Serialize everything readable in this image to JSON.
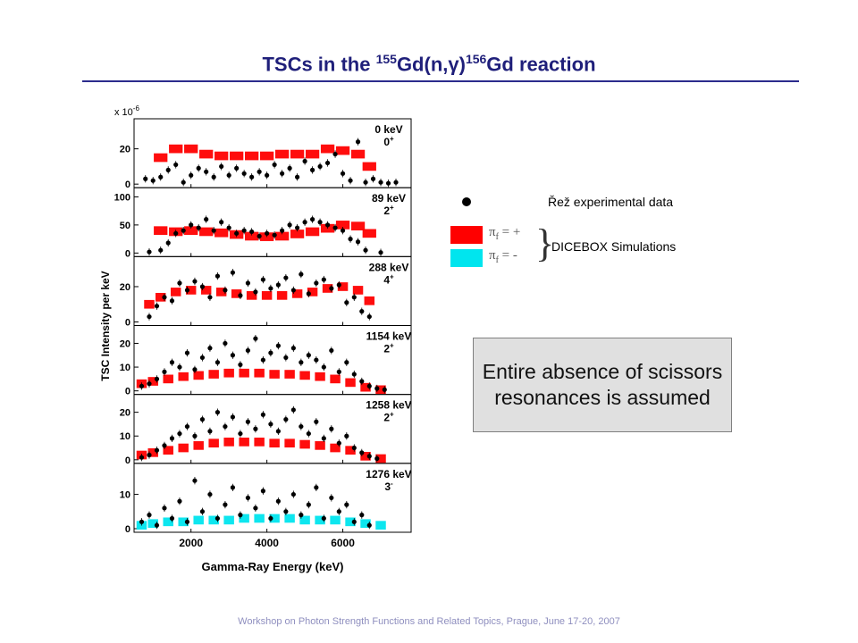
{
  "slide": {
    "title_pre": "TSCs in the ",
    "title_sup1": "155",
    "title_mid": "Gd(n,γ)",
    "title_sup2": "156",
    "title_post": "Gd reaction",
    "footer": "Workshop on Photon Strength Functions and Related Topics, Prague, June 17-20, 2007"
  },
  "legend": {
    "experimental": "Řež experimental data",
    "simulations": "DICEBOX Simulations",
    "pi_plus_symbol": "π",
    "pi_plus_sub": "f",
    "pi_plus_rest": " = +",
    "pi_minus_symbol": "π",
    "pi_minus_sub": "f",
    "pi_minus_rest": " = -",
    "colors": {
      "pi_plus": "#ff0000",
      "pi_minus": "#00e5ee",
      "experimental": "#000000"
    }
  },
  "note": {
    "text": "Entire absence of scissors resonances is assumed"
  },
  "chart_data": {
    "type": "scatter",
    "xlabel": "Gamma-Ray Energy (keV)",
    "ylabel": "TSC Intensity per keV",
    "scale_label": "x 10",
    "scale_exponent": "-6",
    "xlim": [
      500,
      7800
    ],
    "xticks": [
      2000,
      4000,
      6000
    ],
    "panels": [
      {
        "level": "0 keV",
        "spin": "0",
        "parity": "+",
        "ylim": [
          0,
          35
        ],
        "yticks": [
          0,
          20
        ],
        "simulation_color": "#ff0000",
        "simulation": [
          [
            1200,
            15
          ],
          [
            1600,
            20
          ],
          [
            2000,
            20
          ],
          [
            2400,
            17
          ],
          [
            2800,
            16
          ],
          [
            3200,
            16
          ],
          [
            3600,
            16
          ],
          [
            4000,
            16
          ],
          [
            4400,
            17
          ],
          [
            4800,
            17
          ],
          [
            5200,
            17
          ],
          [
            5600,
            20
          ],
          [
            6000,
            19
          ],
          [
            6400,
            17
          ],
          [
            6700,
            10
          ]
        ],
        "experimental": [
          [
            800,
            3
          ],
          [
            1000,
            2
          ],
          [
            1200,
            4
          ],
          [
            1400,
            8
          ],
          [
            1600,
            11
          ],
          [
            1800,
            1
          ],
          [
            2000,
            5
          ],
          [
            2200,
            9
          ],
          [
            2400,
            7
          ],
          [
            2600,
            4
          ],
          [
            2800,
            10
          ],
          [
            3000,
            5
          ],
          [
            3200,
            9
          ],
          [
            3400,
            6
          ],
          [
            3600,
            4
          ],
          [
            3800,
            7
          ],
          [
            4000,
            5
          ],
          [
            4200,
            11
          ],
          [
            4400,
            6
          ],
          [
            4600,
            9
          ],
          [
            4800,
            4
          ],
          [
            5000,
            13
          ],
          [
            5200,
            8
          ],
          [
            5400,
            10
          ],
          [
            5600,
            12
          ],
          [
            5800,
            17
          ],
          [
            6000,
            6
          ],
          [
            6200,
            2
          ],
          [
            6400,
            24
          ],
          [
            6600,
            1
          ],
          [
            6800,
            3
          ],
          [
            7000,
            1
          ],
          [
            7200,
            0.5
          ],
          [
            7400,
            1
          ]
        ]
      },
      {
        "level": "89 keV",
        "spin": "2",
        "parity": "+",
        "ylim": [
          0,
          110
        ],
        "yticks": [
          0,
          50,
          100
        ],
        "simulation_color": "#ff0000",
        "simulation": [
          [
            1200,
            40
          ],
          [
            1600,
            38
          ],
          [
            2000,
            40
          ],
          [
            2400,
            38
          ],
          [
            2800,
            36
          ],
          [
            3200,
            33
          ],
          [
            3600,
            30
          ],
          [
            4000,
            29
          ],
          [
            4400,
            30
          ],
          [
            4800,
            34
          ],
          [
            5200,
            38
          ],
          [
            5600,
            44
          ],
          [
            6000,
            50
          ],
          [
            6400,
            48
          ],
          [
            6700,
            35
          ]
        ],
        "experimental": [
          [
            900,
            2
          ],
          [
            1200,
            5
          ],
          [
            1400,
            18
          ],
          [
            1600,
            35
          ],
          [
            1800,
            40
          ],
          [
            2000,
            50
          ],
          [
            2200,
            45
          ],
          [
            2400,
            60
          ],
          [
            2600,
            40
          ],
          [
            2800,
            55
          ],
          [
            3000,
            45
          ],
          [
            3200,
            35
          ],
          [
            3400,
            40
          ],
          [
            3600,
            38
          ],
          [
            3800,
            30
          ],
          [
            4000,
            35
          ],
          [
            4200,
            32
          ],
          [
            4400,
            40
          ],
          [
            4600,
            50
          ],
          [
            4800,
            45
          ],
          [
            5000,
            55
          ],
          [
            5200,
            60
          ],
          [
            5400,
            55
          ],
          [
            5600,
            50
          ],
          [
            5800,
            45
          ],
          [
            6000,
            40
          ],
          [
            6200,
            25
          ],
          [
            6400,
            20
          ],
          [
            6600,
            5
          ],
          [
            7000,
            1
          ]
        ]
      },
      {
        "level": "288 keV",
        "spin": "4",
        "parity": "+",
        "ylim": [
          0,
          35
        ],
        "yticks": [
          0,
          20
        ],
        "simulation_color": "#ff0000",
        "simulation": [
          [
            900,
            10
          ],
          [
            1200,
            14
          ],
          [
            1600,
            17
          ],
          [
            2000,
            18
          ],
          [
            2400,
            18
          ],
          [
            2800,
            17
          ],
          [
            3200,
            16
          ],
          [
            3600,
            15
          ],
          [
            4000,
            15
          ],
          [
            4400,
            15
          ],
          [
            4800,
            16
          ],
          [
            5200,
            17
          ],
          [
            5600,
            19
          ],
          [
            6000,
            20
          ],
          [
            6400,
            18
          ],
          [
            6700,
            12
          ]
        ],
        "experimental": [
          [
            900,
            3
          ],
          [
            1100,
            9
          ],
          [
            1300,
            14
          ],
          [
            1500,
            12
          ],
          [
            1700,
            22
          ],
          [
            1900,
            18
          ],
          [
            2100,
            23
          ],
          [
            2300,
            20
          ],
          [
            2500,
            14
          ],
          [
            2700,
            26
          ],
          [
            2900,
            18
          ],
          [
            3100,
            28
          ],
          [
            3300,
            15
          ],
          [
            3500,
            22
          ],
          [
            3700,
            17
          ],
          [
            3900,
            24
          ],
          [
            4100,
            19
          ],
          [
            4300,
            21
          ],
          [
            4500,
            25
          ],
          [
            4700,
            18
          ],
          [
            4900,
            27
          ],
          [
            5100,
            16
          ],
          [
            5300,
            22
          ],
          [
            5500,
            24
          ],
          [
            5700,
            19
          ],
          [
            5900,
            21
          ],
          [
            6100,
            11
          ],
          [
            6300,
            14
          ],
          [
            6500,
            6
          ],
          [
            6700,
            3
          ]
        ]
      },
      {
        "level": "1154 keV",
        "spin": "2",
        "parity": "+",
        "ylim": [
          0,
          26
        ],
        "yticks": [
          0,
          10,
          20
        ],
        "simulation_color": "#ff0000",
        "simulation": [
          [
            700,
            3
          ],
          [
            1000,
            4
          ],
          [
            1400,
            5
          ],
          [
            1800,
            6
          ],
          [
            2200,
            6.5
          ],
          [
            2600,
            7
          ],
          [
            3000,
            7.5
          ],
          [
            3400,
            7.5
          ],
          [
            3800,
            7.5
          ],
          [
            4200,
            7
          ],
          [
            4600,
            7
          ],
          [
            5000,
            6.5
          ],
          [
            5400,
            6
          ],
          [
            5800,
            5
          ],
          [
            6200,
            3.5
          ],
          [
            6600,
            1.5
          ],
          [
            7000,
            0.5
          ]
        ],
        "experimental": [
          [
            700,
            2
          ],
          [
            900,
            3
          ],
          [
            1100,
            5
          ],
          [
            1300,
            8
          ],
          [
            1500,
            12
          ],
          [
            1700,
            10
          ],
          [
            1900,
            16
          ],
          [
            2100,
            9
          ],
          [
            2300,
            14
          ],
          [
            2500,
            18
          ],
          [
            2700,
            12
          ],
          [
            2900,
            20
          ],
          [
            3100,
            15
          ],
          [
            3300,
            11
          ],
          [
            3500,
            17
          ],
          [
            3700,
            22
          ],
          [
            3900,
            13
          ],
          [
            4100,
            16
          ],
          [
            4300,
            19
          ],
          [
            4500,
            14
          ],
          [
            4700,
            18
          ],
          [
            4900,
            12
          ],
          [
            5100,
            15
          ],
          [
            5300,
            13
          ],
          [
            5500,
            10
          ],
          [
            5700,
            17
          ],
          [
            5900,
            8
          ],
          [
            6100,
            12
          ],
          [
            6300,
            7
          ],
          [
            6500,
            4
          ],
          [
            6700,
            2
          ],
          [
            6900,
            1
          ],
          [
            7100,
            0.5
          ]
        ]
      },
      {
        "level": "1258 keV",
        "spin": "2",
        "parity": "+",
        "ylim": [
          0,
          26
        ],
        "yticks": [
          0,
          10,
          20
        ],
        "simulation_color": "#ff0000",
        "simulation": [
          [
            700,
            2
          ],
          [
            1000,
            3
          ],
          [
            1400,
            4
          ],
          [
            1800,
            5
          ],
          [
            2200,
            6
          ],
          [
            2600,
            7
          ],
          [
            3000,
            7.5
          ],
          [
            3400,
            7.5
          ],
          [
            3800,
            7.5
          ],
          [
            4200,
            7
          ],
          [
            4600,
            7
          ],
          [
            5000,
            6.5
          ],
          [
            5400,
            6
          ],
          [
            5800,
            5
          ],
          [
            6200,
            4
          ],
          [
            6600,
            1.5
          ],
          [
            7000,
            0.5
          ]
        ],
        "experimental": [
          [
            700,
            1
          ],
          [
            900,
            2
          ],
          [
            1100,
            4
          ],
          [
            1300,
            6
          ],
          [
            1500,
            9
          ],
          [
            1700,
            11
          ],
          [
            1900,
            14
          ],
          [
            2100,
            10
          ],
          [
            2300,
            17
          ],
          [
            2500,
            12
          ],
          [
            2700,
            20
          ],
          [
            2900,
            14
          ],
          [
            3100,
            18
          ],
          [
            3300,
            11
          ],
          [
            3500,
            16
          ],
          [
            3700,
            13
          ],
          [
            3900,
            19
          ],
          [
            4100,
            15
          ],
          [
            4300,
            12
          ],
          [
            4500,
            17
          ],
          [
            4700,
            21
          ],
          [
            4900,
            14
          ],
          [
            5100,
            11
          ],
          [
            5300,
            16
          ],
          [
            5500,
            9
          ],
          [
            5700,
            13
          ],
          [
            5900,
            7
          ],
          [
            6100,
            10
          ],
          [
            6300,
            5
          ],
          [
            6500,
            3
          ],
          [
            6700,
            1.5
          ],
          [
            6900,
            0.5
          ]
        ]
      },
      {
        "level": "1276 keV",
        "spin": "3",
        "parity": "-",
        "ylim": [
          0,
          18
        ],
        "yticks": [
          0,
          10
        ],
        "simulation_color": "#00e5ee",
        "simulation": [
          [
            700,
            1
          ],
          [
            1000,
            1.5
          ],
          [
            1400,
            2
          ],
          [
            1800,
            2
          ],
          [
            2200,
            2.5
          ],
          [
            2600,
            2.5
          ],
          [
            3000,
            2.5
          ],
          [
            3400,
            3
          ],
          [
            3800,
            3
          ],
          [
            4200,
            3
          ],
          [
            4600,
            3
          ],
          [
            5000,
            2.5
          ],
          [
            5400,
            2.5
          ],
          [
            5800,
            2.5
          ],
          [
            6200,
            2
          ],
          [
            6600,
            1.5
          ],
          [
            7000,
            1
          ]
        ],
        "experimental": [
          [
            700,
            2
          ],
          [
            900,
            4
          ],
          [
            1100,
            1
          ],
          [
            1300,
            6
          ],
          [
            1500,
            3
          ],
          [
            1700,
            8
          ],
          [
            1900,
            2
          ],
          [
            2100,
            14
          ],
          [
            2300,
            5
          ],
          [
            2500,
            10
          ],
          [
            2700,
            3
          ],
          [
            2900,
            7
          ],
          [
            3100,
            12
          ],
          [
            3300,
            4
          ],
          [
            3500,
            9
          ],
          [
            3700,
            6
          ],
          [
            3900,
            11
          ],
          [
            4100,
            3
          ],
          [
            4300,
            8
          ],
          [
            4500,
            5
          ],
          [
            4700,
            10
          ],
          [
            4900,
            4
          ],
          [
            5100,
            7
          ],
          [
            5300,
            12
          ],
          [
            5500,
            3
          ],
          [
            5700,
            9
          ],
          [
            5900,
            5
          ],
          [
            6100,
            7
          ],
          [
            6300,
            2
          ],
          [
            6500,
            4
          ],
          [
            6700,
            1
          ]
        ]
      }
    ]
  }
}
